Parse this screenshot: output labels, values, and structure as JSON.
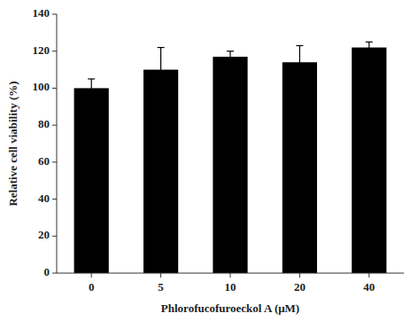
{
  "chart_data": {
    "type": "bar",
    "categories": [
      "0",
      "5",
      "10",
      "20",
      "40"
    ],
    "values": [
      100,
      110,
      117,
      114,
      122
    ],
    "errors": [
      5,
      12,
      3,
      9,
      3
    ],
    "color": "#000000",
    "xlabel": "Phlorofucofuroeckol A (μM)",
    "ylabel": "Relative cell viability (%)",
    "ylim": [
      0,
      140
    ],
    "yticks": [
      0,
      20,
      40,
      60,
      80,
      100,
      120,
      140
    ],
    "grid": false
  }
}
